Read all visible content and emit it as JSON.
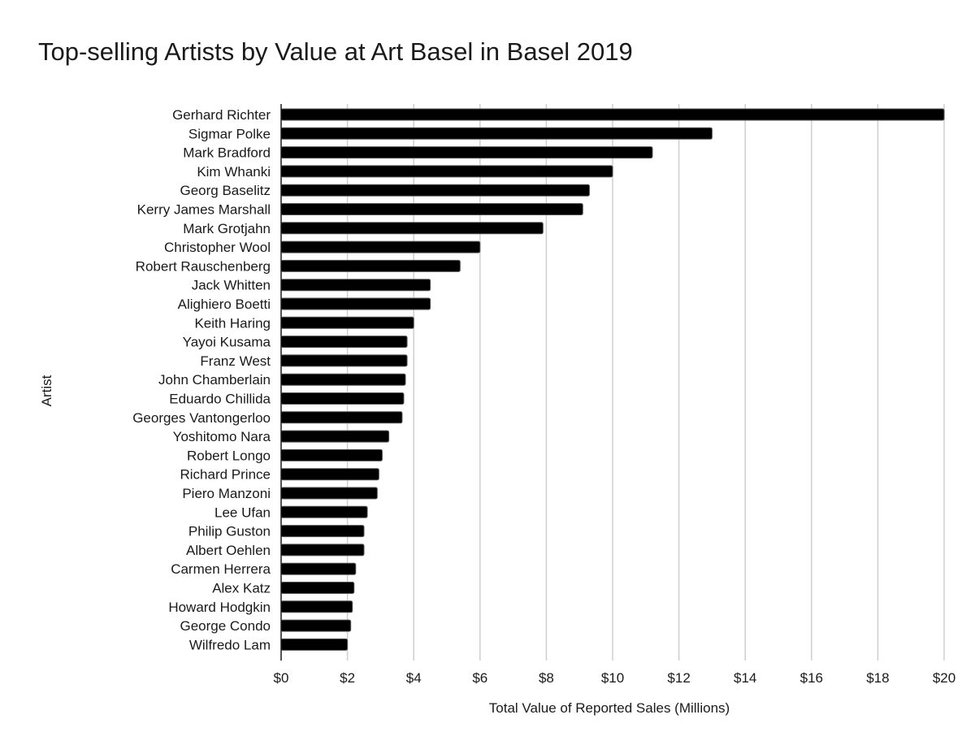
{
  "chart_data": {
    "type": "bar",
    "orientation": "horizontal",
    "title": "Top-selling Artists by Value at Art Basel in Basel 2019",
    "xlabel": "Total Value of Reported Sales (Millions)",
    "ylabel": "Artist",
    "xlim": [
      0,
      20
    ],
    "x_ticks": [
      "$0",
      "$2",
      "$4",
      "$6",
      "$8",
      "$10",
      "$12",
      "$14",
      "$16",
      "$18",
      "$20"
    ],
    "grid": "vertical",
    "bar_color": "#000000",
    "categories": [
      "Gerhard Richter",
      "Sigmar Polke",
      "Mark Bradford",
      "Kim Whanki",
      "Georg Baselitz",
      "Kerry James Marshall",
      "Mark Grotjahn",
      "Christopher Wool",
      "Robert Rauschenberg",
      "Jack Whitten",
      "Alighiero Boetti",
      "Keith Haring",
      "Yayoi Kusama",
      "Franz West",
      "John Chamberlain",
      "Eduardo Chillida",
      "Georges Vantongerloo",
      "Yoshitomo Nara",
      "Robert Longo",
      "Richard Prince",
      "Piero Manzoni",
      "Lee Ufan",
      "Philip Guston",
      "Albert Oehlen",
      "Carmen Herrera",
      "Alex Katz",
      "Howard Hodgkin",
      "George Condo",
      "Wilfredo Lam"
    ],
    "values": [
      20,
      13,
      11.2,
      10,
      9.3,
      9.1,
      7.9,
      6,
      5.4,
      4.5,
      4.5,
      4,
      3.8,
      3.8,
      3.75,
      3.7,
      3.65,
      3.25,
      3.05,
      2.95,
      2.9,
      2.6,
      2.5,
      2.5,
      2.25,
      2.2,
      2.15,
      2.1,
      2
    ]
  }
}
